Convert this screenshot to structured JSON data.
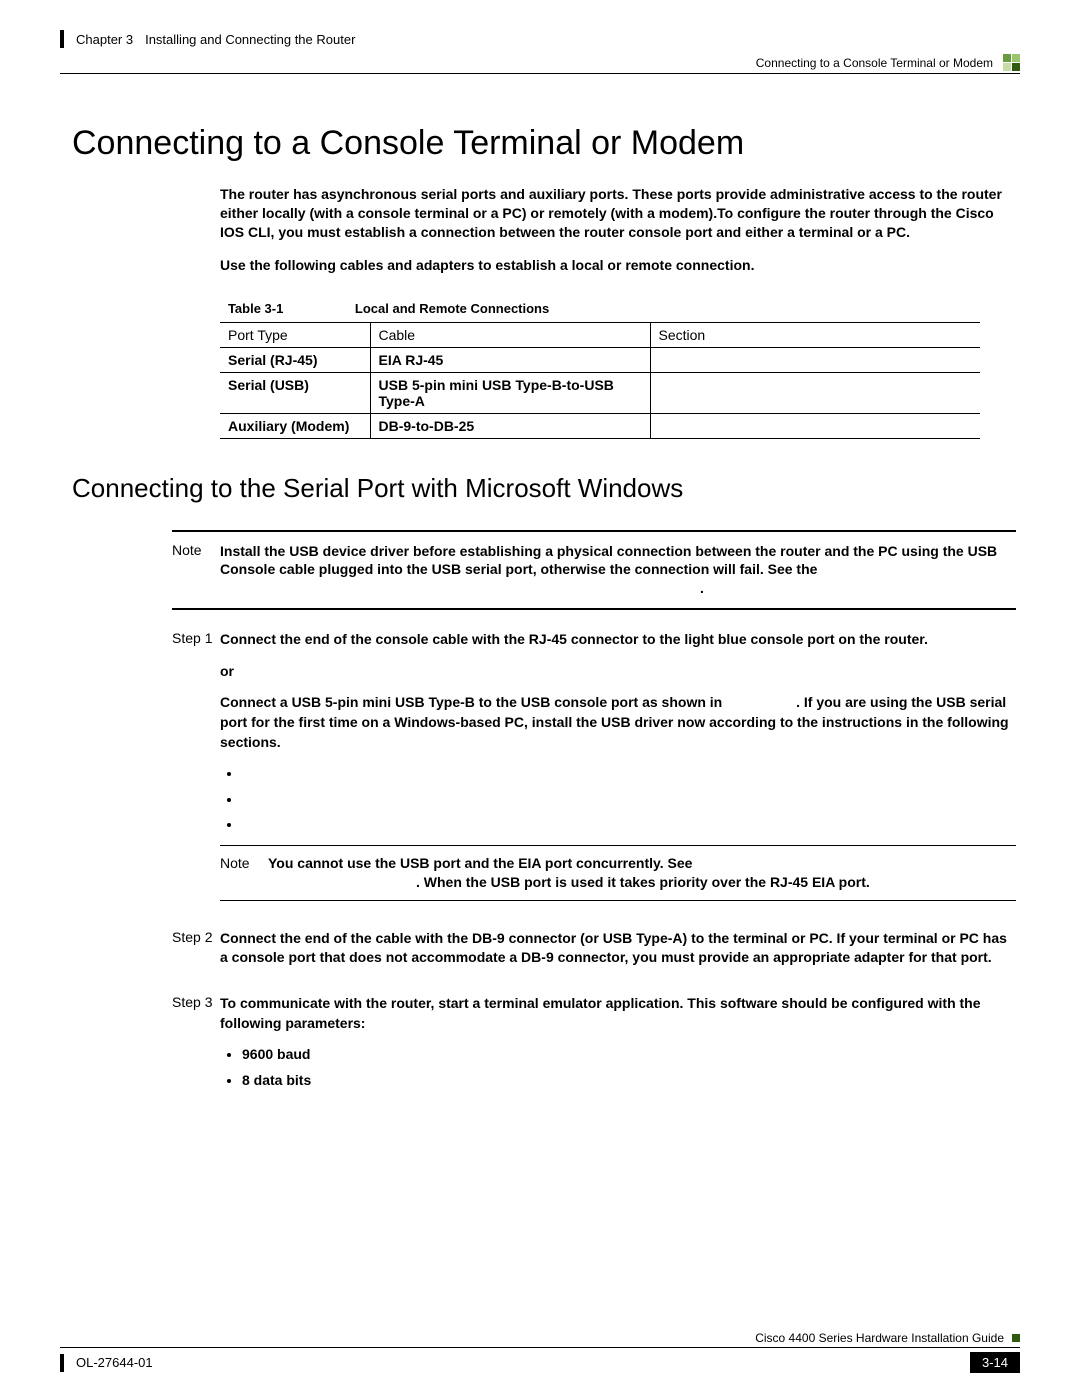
{
  "header": {
    "chapter_label": "Chapter 3",
    "chapter_title": "Installing and Connecting the Router",
    "breadcrumb": "Connecting to a Console Terminal or Modem"
  },
  "corner_colors": [
    "#6a9a3f",
    "#9bc46e",
    "#c7dba8",
    "#2f5b11"
  ],
  "title": "Connecting to a Console Terminal or Modem",
  "intro": {
    "p1": "The router has asynchronous serial ports and auxiliary ports. These ports provide administrative access to the router either locally (with a console terminal or a PC) or remotely (with a modem).To configure the router through the Cisco IOS CLI, you must establish a connection between the router console port and either a terminal or a PC.",
    "p2": "Use the following cables and adapters to establish a local or remote connection."
  },
  "table": {
    "caption_label": "Table 3-1",
    "caption_title": "Local and Remote Connections",
    "headers": [
      "Port Type",
      "Cable",
      "Section"
    ],
    "rows": [
      [
        "Serial (RJ-45)",
        "EIA RJ-45",
        ""
      ],
      [
        "Serial (USB)",
        "USB 5-pin mini USB Type-B-to-USB Type-A",
        ""
      ],
      [
        "Auxiliary (Modem)",
        "DB-9-to-DB-25",
        ""
      ]
    ]
  },
  "subtitle": "Connecting to the Serial Port with Microsoft Windows",
  "note1": {
    "label": "Note",
    "body": "Install the USB device driver before establishing a physical connection between the router and the PC using the USB Console cable plugged into the USB serial port, otherwise the connection will fail. See the",
    "trailing_dot": "."
  },
  "steps": {
    "s1": {
      "label": "Step 1",
      "p1": "Connect the end of the console cable with the RJ-45 connector to the light blue console port on the router.",
      "or": "or",
      "p2a": "Connect a USB 5-pin mini USB Type-B to the USB console port as shown in ",
      "p2b": ". If you are using the USB serial port for the first time on a Windows-based PC, install the USB driver now according to the instructions in the following sections.",
      "bullets": [
        "",
        "",
        ""
      ],
      "inner_note_label": "Note",
      "inner_note_line1": "You cannot use the USB port and the EIA port concurrently. See ",
      "inner_note_line2": ". When the USB port is used it takes priority over the RJ-45 EIA port."
    },
    "s2": {
      "label": "Step 2",
      "body": "Connect the end of the cable with the DB-9 connector (or USB Type-A) to the terminal or PC. If your terminal or PC has a console port that does not accommodate a DB-9 connector, you must provide an appropriate adapter for that port."
    },
    "s3": {
      "label": "Step 3",
      "body": "To communicate with the router, start a terminal emulator application. This software should be configured with the following parameters:",
      "bullets": [
        "9600 baud",
        "8 data bits"
      ]
    }
  },
  "footer": {
    "guide": "Cisco 4400 Series Hardware Installation Guide",
    "doc": "OL-27644-01",
    "page": "3-14",
    "sq_color": "#2f5b11"
  }
}
